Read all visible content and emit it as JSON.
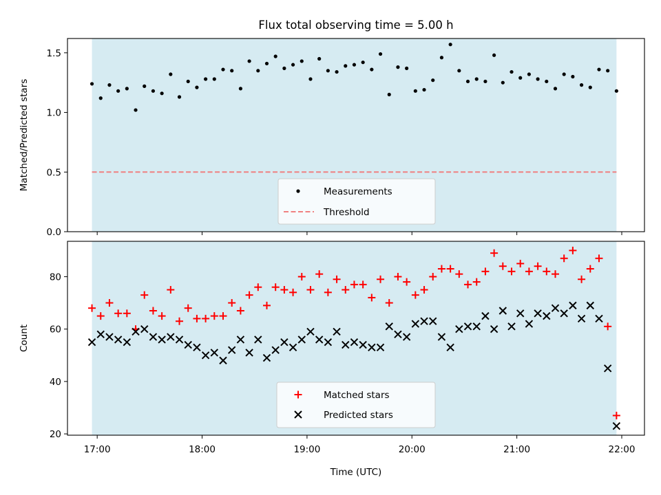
{
  "chart_data": [
    {
      "type": "scatter",
      "panel": "top",
      "title": "Flux total observing time = 5.00 h",
      "xlabel": "",
      "ylabel": "Matched/Predicted stars",
      "ylim": [
        0.0,
        1.62
      ],
      "yticks": [
        "0.0",
        "0.5",
        "1.0",
        "1.5"
      ],
      "ytick_values": [
        0.0,
        0.5,
        1.0,
        1.5
      ],
      "xlim": [
        "16:43",
        "22:13"
      ],
      "shaded_span": [
        "16:57",
        "21:57"
      ],
      "shade_color": "#add8e6",
      "grid": false,
      "legend_location": "lower center",
      "series": [
        {
          "name": "Measurements",
          "marker": "dot",
          "color": "#000000",
          "x": [
            "16:57",
            "17:02",
            "17:07",
            "17:12",
            "17:17",
            "17:22",
            "17:27",
            "17:32",
            "17:37",
            "17:42",
            "17:47",
            "17:52",
            "17:57",
            "18:02",
            "18:07",
            "18:12",
            "18:17",
            "18:22",
            "18:27",
            "18:32",
            "18:37",
            "18:42",
            "18:47",
            "18:52",
            "18:57",
            "19:02",
            "19:07",
            "19:12",
            "19:17",
            "19:22",
            "19:27",
            "19:32",
            "19:37",
            "19:42",
            "19:47",
            "19:52",
            "19:57",
            "20:02",
            "20:07",
            "20:12",
            "20:17",
            "20:22",
            "20:27",
            "20:32",
            "20:37",
            "20:42",
            "20:47",
            "20:52",
            "20:57",
            "21:02",
            "21:07",
            "21:12",
            "21:17",
            "21:22",
            "21:27",
            "21:32",
            "21:37",
            "21:42",
            "21:47",
            "21:52",
            "21:57"
          ],
          "y": [
            1.24,
            1.12,
            1.23,
            1.18,
            1.2,
            1.02,
            1.22,
            1.18,
            1.16,
            1.32,
            1.13,
            1.26,
            1.21,
            1.28,
            1.28,
            1.36,
            1.35,
            1.2,
            1.43,
            1.35,
            1.41,
            1.47,
            1.37,
            1.4,
            1.43,
            1.28,
            1.45,
            1.35,
            1.34,
            1.39,
            1.4,
            1.42,
            1.36,
            1.49,
            1.15,
            1.38,
            1.37,
            1.18,
            1.19,
            1.27,
            1.46,
            1.57,
            1.35,
            1.26,
            1.28,
            1.26,
            1.48,
            1.25,
            1.34,
            1.29,
            1.32,
            1.28,
            1.26,
            1.2,
            1.32,
            1.3,
            1.23,
            1.21,
            1.36,
            1.35,
            1.18
          ]
        },
        {
          "name": "Threshold",
          "line_style": "dashed",
          "color": "#f08080",
          "x": [
            "16:57",
            "21:57"
          ],
          "y": [
            0.5,
            0.5
          ]
        }
      ]
    },
    {
      "type": "scatter",
      "panel": "bottom",
      "xlabel": "Time (UTC)",
      "ylabel": "Count",
      "ylim": [
        19.5,
        93.5
      ],
      "yticks": [
        "20",
        "40",
        "60",
        "80"
      ],
      "ytick_values": [
        20,
        40,
        60,
        80
      ],
      "xlim": [
        "16:43",
        "22:13"
      ],
      "xticks": [
        "17:00",
        "18:00",
        "19:00",
        "20:00",
        "21:00",
        "22:00"
      ],
      "shaded_span": [
        "16:57",
        "21:57"
      ],
      "shade_color": "#add8e6",
      "grid": false,
      "legend_location": "lower center",
      "series": [
        {
          "name": "Matched stars",
          "marker": "plus",
          "color": "#ff0000",
          "x": [
            "16:57",
            "17:02",
            "17:07",
            "17:12",
            "17:17",
            "17:22",
            "17:27",
            "17:32",
            "17:37",
            "17:42",
            "17:47",
            "17:52",
            "17:57",
            "18:02",
            "18:07",
            "18:12",
            "18:17",
            "18:22",
            "18:27",
            "18:32",
            "18:37",
            "18:42",
            "18:47",
            "18:52",
            "18:57",
            "19:02",
            "19:07",
            "19:12",
            "19:17",
            "19:22",
            "19:27",
            "19:32",
            "19:37",
            "19:42",
            "19:47",
            "19:52",
            "19:57",
            "20:02",
            "20:07",
            "20:12",
            "20:17",
            "20:22",
            "20:27",
            "20:32",
            "20:37",
            "20:42",
            "20:47",
            "20:52",
            "20:57",
            "21:02",
            "21:07",
            "21:12",
            "21:17",
            "21:22",
            "21:27",
            "21:32",
            "21:37",
            "21:42",
            "21:47",
            "21:52",
            "21:57"
          ],
          "y": [
            68,
            65,
            70,
            66,
            66,
            60,
            73,
            67,
            65,
            75,
            63,
            68,
            64,
            64,
            65,
            65,
            70,
            67,
            73,
            76,
            69,
            76,
            75,
            74,
            80,
            75,
            81,
            74,
            79,
            75,
            77,
            77,
            72,
            79,
            70,
            80,
            78,
            73,
            75,
            80,
            83,
            83,
            81,
            77,
            78,
            82,
            89,
            84,
            82,
            85,
            82,
            84,
            82,
            81,
            87,
            90,
            79,
            83,
            87,
            61,
            27
          ]
        },
        {
          "name": "Predicted stars",
          "marker": "x",
          "color": "#000000",
          "x": [
            "16:57",
            "17:02",
            "17:07",
            "17:12",
            "17:17",
            "17:22",
            "17:27",
            "17:32",
            "17:37",
            "17:42",
            "17:47",
            "17:52",
            "17:57",
            "18:02",
            "18:07",
            "18:12",
            "18:17",
            "18:22",
            "18:27",
            "18:32",
            "18:37",
            "18:42",
            "18:47",
            "18:52",
            "18:57",
            "19:02",
            "19:07",
            "19:12",
            "19:17",
            "19:22",
            "19:27",
            "19:32",
            "19:37",
            "19:42",
            "19:47",
            "19:52",
            "19:57",
            "20:02",
            "20:07",
            "20:12",
            "20:17",
            "20:22",
            "20:27",
            "20:32",
            "20:37",
            "20:42",
            "20:47",
            "20:52",
            "20:57",
            "21:02",
            "21:07",
            "21:12",
            "21:17",
            "21:22",
            "21:27",
            "21:32",
            "21:37",
            "21:42",
            "21:47",
            "21:52",
            "21:57"
          ],
          "y": [
            55,
            58,
            57,
            56,
            55,
            59,
            60,
            57,
            56,
            57,
            56,
            54,
            53,
            50,
            51,
            48,
            52,
            56,
            51,
            56,
            49,
            52,
            55,
            53,
            56,
            59,
            56,
            55,
            59,
            54,
            55,
            54,
            53,
            53,
            61,
            58,
            57,
            62,
            63,
            63,
            57,
            53,
            60,
            61,
            61,
            65,
            60,
            67,
            61,
            66,
            62,
            66,
            65,
            68,
            66,
            69,
            64,
            69,
            64,
            45,
            23
          ]
        }
      ]
    }
  ]
}
